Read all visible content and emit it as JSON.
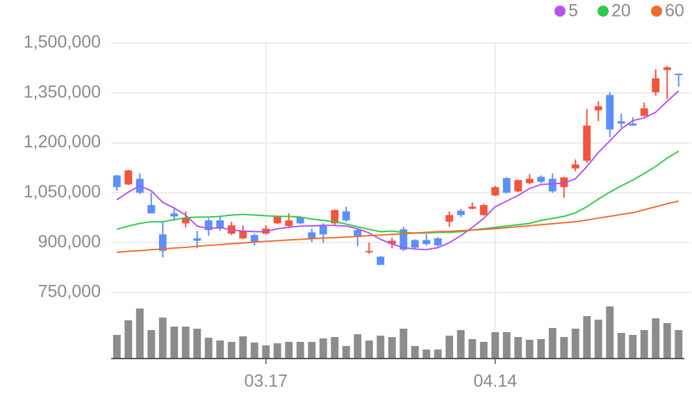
{
  "chart_data": {
    "type": "candlestick",
    "categories": [
      null,
      null,
      null,
      null,
      null,
      null,
      null,
      null,
      null,
      null,
      null,
      null,
      null,
      "03.17",
      null,
      null,
      null,
      null,
      null,
      null,
      null,
      null,
      null,
      null,
      null,
      null,
      null,
      null,
      null,
      null,
      null,
      null,
      null,
      "04.14",
      null,
      null,
      null,
      null,
      null,
      null,
      null,
      null,
      null,
      null,
      null,
      null,
      null,
      null,
      null,
      null
    ],
    "open": [
      1102000,
      1075000,
      1092000,
      1013000,
      925000,
      988000,
      958000,
      913000,
      967000,
      967000,
      927000,
      913000,
      923000,
      927000,
      958000,
      950000,
      977000,
      931000,
      954000,
      958000,
      994000,
      938000,
      871000,
      858000,
      896000,
      940000,
      908000,
      908000,
      913000,
      963000,
      996000,
      1002000,
      983000,
      1042000,
      1094000,
      1054000,
      1079000,
      1098000,
      1092000,
      1067000,
      1123000,
      1146000,
      1298000,
      1344000,
      1265000,
      1258000,
      1281000,
      1352000,
      1419000,
      1408000
    ],
    "high": [
      1104000,
      1119000,
      1108000,
      1050000,
      963000,
      1004000,
      994000,
      935000,
      973000,
      977000,
      963000,
      952000,
      927000,
      952000,
      981000,
      988000,
      979000,
      942000,
      958000,
      1000000,
      1008000,
      942000,
      900000,
      860000,
      915000,
      948000,
      910000,
      925000,
      917000,
      994000,
      1002000,
      1021000,
      1017000,
      1071000,
      1096000,
      1090000,
      1106000,
      1102000,
      1108000,
      1098000,
      1150000,
      1302000,
      1325000,
      1352000,
      1288000,
      1277000,
      1321000,
      1421000,
      1431000,
      1408000
    ],
    "low": [
      1056000,
      1073000,
      1046000,
      988000,
      856000,
      967000,
      946000,
      883000,
      921000,
      935000,
      923000,
      910000,
      892000,
      925000,
      956000,
      946000,
      956000,
      902000,
      900000,
      954000,
      963000,
      890000,
      867000,
      833000,
      883000,
      875000,
      883000,
      892000,
      888000,
      948000,
      977000,
      1000000,
      981000,
      1040000,
      1048000,
      1052000,
      1075000,
      1079000,
      1050000,
      1035000,
      1115000,
      1140000,
      1265000,
      1217000,
      1246000,
      1252000,
      1279000,
      1342000,
      1331000,
      1369000
    ],
    "close": [
      1067000,
      1117000,
      1050000,
      988000,
      875000,
      979000,
      975000,
      906000,
      938000,
      942000,
      952000,
      935000,
      902000,
      942000,
      979000,
      967000,
      958000,
      913000,
      925000,
      998000,
      967000,
      917000,
      875000,
      833000,
      906000,
      879000,
      885000,
      896000,
      892000,
      983000,
      983000,
      1008000,
      1013000,
      1067000,
      1050000,
      1088000,
      1092000,
      1083000,
      1054000,
      1096000,
      1135000,
      1252000,
      1310000,
      1240000,
      1258000,
      1252000,
      1304000,
      1394000,
      1427000,
      1404000
    ],
    "up_color": "#f4533c",
    "down_color": "#5b8ff9",
    "series": [
      {
        "name": "5",
        "color": "#b552f0",
        "values": [
          1029000,
          1052000,
          1071000,
          1056000,
          1021000,
          1004000,
          983000,
          950000,
          942000,
          946000,
          938000,
          935000,
          933000,
          933000,
          942000,
          946000,
          950000,
          950000,
          952000,
          952000,
          950000,
          942000,
          929000,
          910000,
          896000,
          885000,
          881000,
          879000,
          885000,
          900000,
          921000,
          946000,
          973000,
          1008000,
          1025000,
          1042000,
          1063000,
          1075000,
          1077000,
          1079000,
          1092000,
          1129000,
          1171000,
          1206000,
          1242000,
          1267000,
          1275000,
          1292000,
          1325000,
          1356000
        ]
      },
      {
        "name": "20",
        "color": "#2ecc4a",
        "values": [
          940000,
          950000,
          958000,
          963000,
          963000,
          969000,
          975000,
          977000,
          977000,
          979000,
          983000,
          985000,
          983000,
          981000,
          979000,
          979000,
          977000,
          971000,
          967000,
          963000,
          956000,
          948000,
          940000,
          933000,
          935000,
          931000,
          929000,
          929000,
          931000,
          931000,
          933000,
          938000,
          942000,
          946000,
          950000,
          954000,
          958000,
          967000,
          973000,
          979000,
          990000,
          1008000,
          1031000,
          1052000,
          1071000,
          1088000,
          1108000,
          1129000,
          1154000,
          1175000
        ]
      },
      {
        "name": "60",
        "color": "#f26a2e",
        "values": [
          871000,
          874000,
          876000,
          879000,
          881000,
          884000,
          886000,
          889000,
          892000,
          894000,
          897000,
          899000,
          902000,
          904000,
          906000,
          908000,
          910000,
          912000,
          914000,
          915000,
          917000,
          919000,
          921000,
          923000,
          925000,
          927000,
          929000,
          931000,
          933000,
          934000,
          936000,
          938000,
          940000,
          942000,
          945000,
          948000,
          951000,
          954000,
          957000,
          960000,
          963000,
          968000,
          974000,
          979000,
          985000,
          990000,
          999000,
          1008000,
          1017000,
          1025000
        ]
      }
    ],
    "volume": {
      "color": "#8c8c8c",
      "ylim": [
        0,
        80
      ],
      "values": [
        34,
        55,
        72,
        41,
        59,
        46,
        46,
        43,
        30,
        26,
        24,
        32,
        23,
        19,
        22,
        24,
        24,
        24,
        29,
        31,
        18,
        35,
        26,
        33,
        31,
        43,
        18,
        13,
        13,
        33,
        41,
        28,
        24,
        38,
        38,
        31,
        27,
        28,
        44,
        31,
        43,
        61,
        56,
        75,
        37,
        34,
        41,
        58,
        51,
        41
      ]
    },
    "ylim": [
      700000,
      1550000
    ],
    "yticks": [
      {
        "value": 750000,
        "label": "750,000"
      },
      {
        "value": 900000,
        "label": "900,000"
      },
      {
        "value": 1050000,
        "label": "1,050,000"
      },
      {
        "value": 1200000,
        "label": "1,200,000"
      },
      {
        "value": 1350000,
        "label": "1,350,000"
      },
      {
        "value": 1500000,
        "label": "1,500,000"
      }
    ],
    "grid": true
  }
}
